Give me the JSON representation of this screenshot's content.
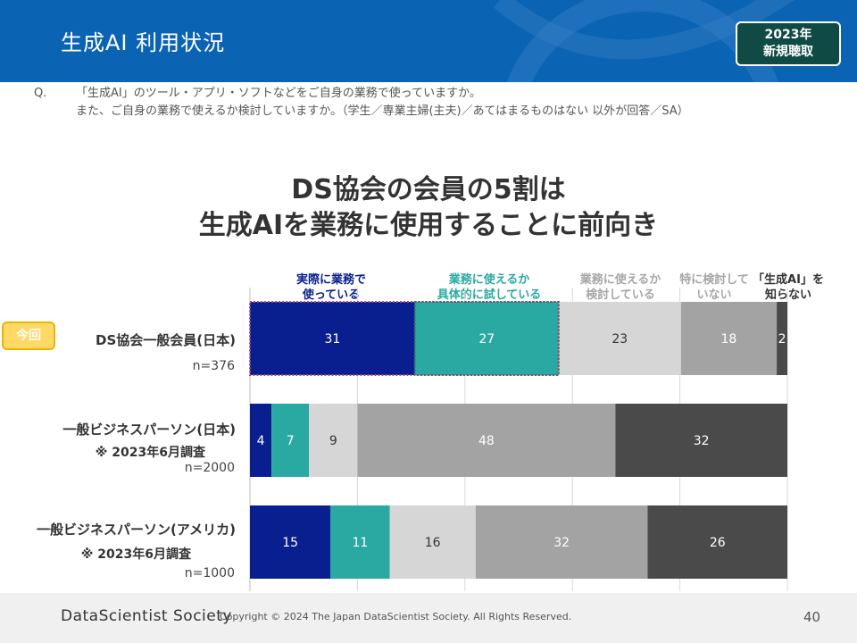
{
  "header": {
    "title": "生成AI 利用状況",
    "badge_line1": "2023年",
    "badge_line2": "新規聴取"
  },
  "question": {
    "marker": "Q.",
    "line1": "「生成AI」のツール・アプリ・ソフトなどをご自身の業務で使っていますか。",
    "line2": "また、ご自身の業務で使えるか検討していますか。（学生／専業主婦(主夫)／あてはまるものはない 以外が回答／SA）"
  },
  "headline": {
    "line1": "DS協会の会員の5割は",
    "line2": "生成AIを業務に使用することに前向き"
  },
  "highlight_tag": "今回",
  "chart_data": {
    "type": "bar",
    "orientation": "horizontal",
    "stacked": true,
    "categories": [
      {
        "label": "DS協会一般会員(日本)",
        "note": "",
        "n": "n=376"
      },
      {
        "label": "一般ビジネスパーソン(日本)",
        "note": "※ 2023年6月調査",
        "n": "n=2000"
      },
      {
        "label": "一般ビジネスパーソン(アメリカ)",
        "note": "※ 2023年6月調査",
        "n": "n=1000"
      }
    ],
    "series": [
      {
        "name_line1": "実際に業務で",
        "name_line2": "使っている",
        "color": "#0a1f8f",
        "label_color": "#0a1f8f",
        "values": [
          31,
          4,
          15
        ]
      },
      {
        "name_line1": "業務に使えるか",
        "name_line2": "具体的に試している",
        "color": "#2aa9a3",
        "label_color": "#2aa9a3",
        "values": [
          27,
          7,
          11
        ]
      },
      {
        "name_line1": "業務に使えるか",
        "name_line2": "検討している",
        "color": "#d6d6d6",
        "label_color": "#a6a6a6",
        "values": [
          23,
          9,
          16
        ]
      },
      {
        "name_line1": "特に検討して",
        "name_line2": "いない",
        "color": "#a3a3a3",
        "label_color": "#a6a6a6",
        "values": [
          18,
          48,
          32
        ]
      },
      {
        "name_line1": "「生成AI」を",
        "name_line2": "知らない",
        "color": "#4a4a4a",
        "label_color": "#333333",
        "values": [
          2,
          32,
          26
        ]
      }
    ],
    "xlim": [
      0,
      100
    ],
    "unit": "%",
    "highlight_segments": "first two segments of category 1 outlined"
  },
  "footer": {
    "brand": "DataScientist Society",
    "copyright": "Copyright © 2024  The Japan DataScientist Society. All Rights Reserved.",
    "page": "40"
  }
}
